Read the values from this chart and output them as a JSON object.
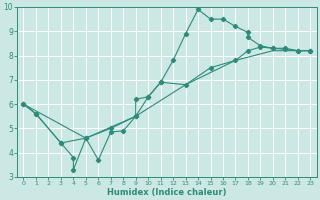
{
  "xlabel": "Humidex (Indice chaleur)",
  "xlim": [
    -0.5,
    23.5
  ],
  "ylim": [
    3,
    10
  ],
  "xticks": [
    0,
    1,
    2,
    3,
    4,
    5,
    6,
    7,
    8,
    9,
    10,
    11,
    12,
    13,
    14,
    15,
    16,
    17,
    18,
    19,
    20,
    21,
    22,
    23
  ],
  "yticks": [
    3,
    4,
    5,
    6,
    7,
    8,
    9,
    10
  ],
  "line_color": "#2e8b7a",
  "bg_color": "#cce8e4",
  "grid_color": "#ffffff",
  "series1": [
    [
      0,
      6.0
    ],
    [
      1,
      5.6
    ],
    [
      3,
      4.4
    ],
    [
      4,
      3.8
    ],
    [
      4,
      3.3
    ],
    [
      5,
      4.6
    ],
    [
      6,
      3.7
    ],
    [
      7,
      4.85
    ],
    [
      8,
      4.9
    ],
    [
      9,
      5.5
    ],
    [
      9,
      6.2
    ],
    [
      10,
      6.3
    ],
    [
      11,
      6.9
    ],
    [
      12,
      7.8
    ],
    [
      13,
      8.9
    ],
    [
      14,
      9.9
    ],
    [
      15,
      9.5
    ],
    [
      16,
      9.5
    ],
    [
      17,
      9.2
    ],
    [
      18,
      8.95
    ],
    [
      18,
      8.75
    ],
    [
      19,
      8.4
    ],
    [
      20,
      8.3
    ],
    [
      21,
      8.3
    ],
    [
      22,
      8.2
    ],
    [
      23,
      8.2
    ]
  ],
  "series2": [
    [
      0,
      6.0
    ],
    [
      1,
      5.6
    ],
    [
      3,
      4.4
    ],
    [
      5,
      4.6
    ],
    [
      7,
      5.0
    ],
    [
      9,
      5.5
    ],
    [
      10,
      6.3
    ],
    [
      11,
      6.9
    ],
    [
      13,
      6.8
    ],
    [
      15,
      7.5
    ],
    [
      17,
      7.8
    ],
    [
      18,
      8.2
    ],
    [
      19,
      8.35
    ],
    [
      20,
      8.3
    ],
    [
      21,
      8.25
    ],
    [
      22,
      8.2
    ],
    [
      23,
      8.2
    ]
  ],
  "series3": [
    [
      0,
      6.0
    ],
    [
      5,
      4.6
    ],
    [
      9,
      5.5
    ],
    [
      13,
      6.8
    ],
    [
      17,
      7.8
    ],
    [
      20,
      8.2
    ],
    [
      23,
      8.2
    ]
  ]
}
